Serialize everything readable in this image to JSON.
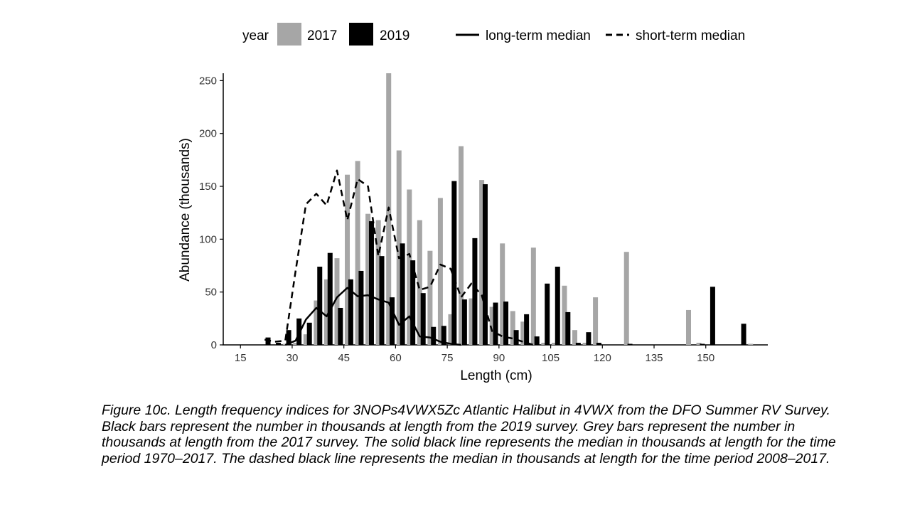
{
  "chart_data": {
    "type": "bar",
    "xlabel": "Length (cm)",
    "ylabel": "Abundance (thousands)",
    "xlim": [
      10,
      168
    ],
    "ylim": [
      0,
      257
    ],
    "x_ticks": [
      15,
      30,
      45,
      60,
      75,
      90,
      105,
      120,
      135,
      150
    ],
    "y_ticks": [
      0,
      50,
      100,
      150,
      200,
      250
    ],
    "grid": false,
    "legend": {
      "placement": "top",
      "title": "year",
      "entries": [
        "2017",
        "2019",
        "long-term median",
        "short-term median"
      ]
    },
    "series": [
      {
        "name": "2017",
        "kind": "bar",
        "color": "#a6a6a6",
        "x": [
          28,
          31,
          34,
          37,
          40,
          43,
          46,
          49,
          52,
          55,
          58,
          61,
          64,
          67,
          70,
          73,
          76,
          79,
          82,
          85,
          88,
          91,
          94,
          97,
          100,
          103,
          106,
          109,
          112,
          115,
          118,
          127,
          145,
          148,
          163
        ],
        "values": [
          1,
          2,
          10,
          42,
          62,
          82,
          161,
          174,
          124,
          118,
          257,
          184,
          147,
          118,
          89,
          139,
          29,
          188,
          44,
          156,
          36,
          96,
          32,
          22,
          92,
          2,
          2,
          56,
          14,
          2,
          45,
          88,
          33,
          2,
          1
        ]
      },
      {
        "name": "2019",
        "kind": "bar",
        "color": "#000000",
        "x": [
          23,
          26,
          29,
          32,
          35,
          38,
          41,
          44,
          47,
          50,
          53,
          56,
          59,
          62,
          65,
          68,
          71,
          74,
          77,
          80,
          83,
          86,
          89,
          92,
          95,
          98,
          101,
          104,
          107,
          110,
          113,
          116,
          119,
          128,
          149,
          152,
          161
        ],
        "values": [
          7,
          2,
          14,
          25,
          21,
          74,
          87,
          35,
          62,
          70,
          117,
          84,
          45,
          96,
          80,
          49,
          17,
          18,
          155,
          43,
          101,
          152,
          40,
          41,
          14,
          29,
          8,
          58,
          74,
          31,
          2,
          12,
          2,
          1,
          1,
          55,
          20
        ]
      },
      {
        "name": "long-term median",
        "kind": "line",
        "style": "solid",
        "color": "#000000",
        "x": [
          28,
          31,
          34,
          37,
          40,
          43,
          46,
          49,
          52,
          55,
          58,
          61,
          64,
          67,
          70,
          73,
          76,
          79
        ],
        "values": [
          0,
          4,
          24,
          35,
          27,
          45,
          54,
          46,
          47,
          43,
          40,
          19,
          27,
          8,
          7,
          3,
          1,
          0
        ]
      },
      {
        "name": "short-term median",
        "kind": "line",
        "style": "dashed",
        "color": "#000000",
        "x": [
          22,
          25,
          28,
          31,
          34,
          37,
          40,
          43,
          46,
          49,
          52,
          55,
          58,
          61,
          64,
          67,
          70,
          73,
          76,
          79,
          82,
          85,
          88,
          91,
          94,
          97,
          100
        ],
        "values": [
          5,
          3,
          4,
          70,
          133,
          143,
          132,
          165,
          118,
          157,
          150,
          84,
          130,
          82,
          86,
          52,
          55,
          76,
          72,
          45,
          58,
          47,
          13,
          8,
          6,
          3,
          0
        ]
      }
    ]
  },
  "caption": "Figure 10c. Length frequency indices for 3NOPs4VWX5Zc Atlantic Halibut in 4VWX from the DFO Summer RV Survey. Black bars represent the number in thousands at length from the 2019 survey. Grey bars represent the number in thousands at length from the 2017 survey. The solid black line represents the median in thousands at length for the time period 1970–2017. The dashed black line represents the median in thousands at length for the time period 2008–2017."
}
